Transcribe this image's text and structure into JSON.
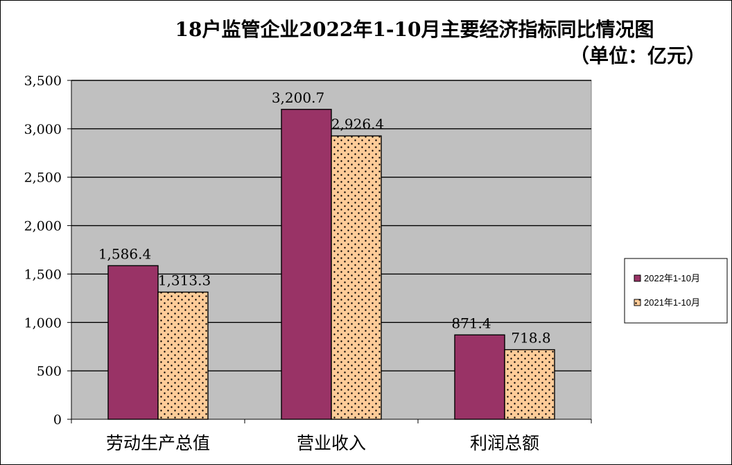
{
  "chart_data": {
    "type": "bar",
    "title": "18户监管企业2022年1-10月主要经济指标同比情况图",
    "subtitle": "（单位：亿元）",
    "categories": [
      "劳动生产总值",
      "营业收入",
      "利润总额"
    ],
    "series": [
      {
        "name": "2022年1-10月",
        "values": [
          1586.4,
          3200.7,
          871.4
        ],
        "labels": [
          "1,586.4",
          "3,200.7",
          "871.4"
        ],
        "color": "#993366",
        "pattern": "solid"
      },
      {
        "name": "2021年1-10月",
        "values": [
          1313.3,
          2926.4,
          718.8
        ],
        "labels": [
          "1,313.3",
          "2,926.4",
          "718.8"
        ],
        "color": "#ffcc99",
        "pattern": "dots"
      }
    ],
    "ylim": [
      0,
      3500
    ],
    "yticks": [
      0,
      500,
      1000,
      1500,
      2000,
      2500,
      3000,
      3500
    ],
    "ytick_labels": [
      "0",
      "500",
      "1,000",
      "1,500",
      "2,000",
      "2,500",
      "3,000",
      "3,500"
    ],
    "plot_background": "#c0c0c0",
    "grid": true,
    "legend_position": "right"
  }
}
